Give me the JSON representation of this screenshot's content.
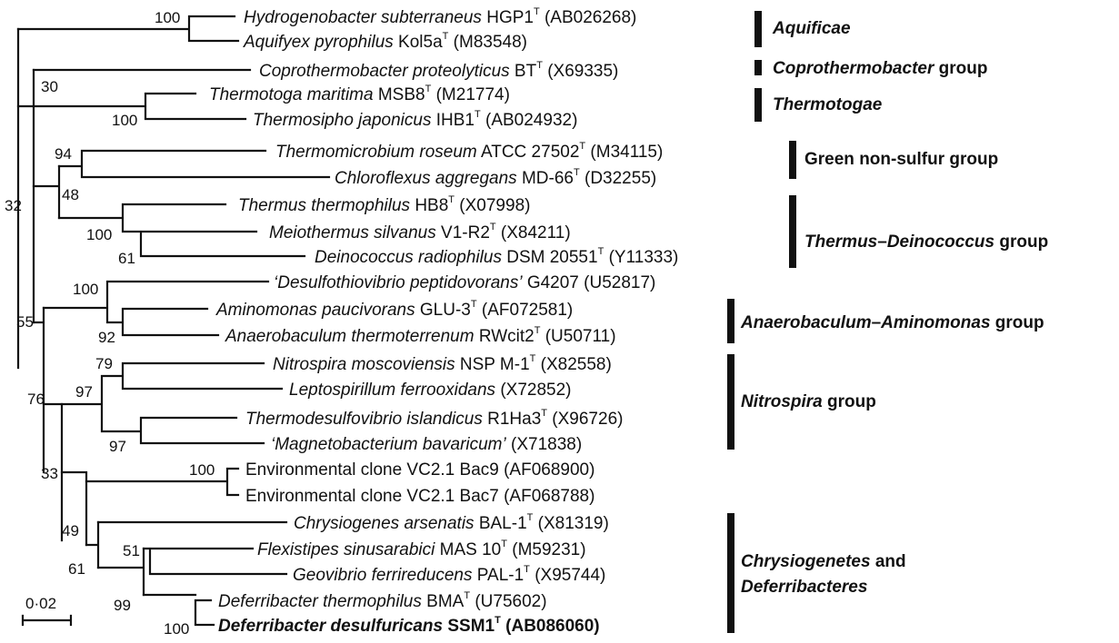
{
  "taxa": [
    {
      "genus": "Hydrogenobacter subterraneus",
      "strain": "HGP1",
      "T": true,
      "acc": "(AB026268)"
    },
    {
      "genus": "Aquifyex pyrophilus",
      "strain": "Kol5a",
      "T": true,
      "acc": "(M83548)"
    },
    {
      "genus": "Coprothermobacter proteolyticus",
      "strain": "BT",
      "T": true,
      "acc": "(X69335)"
    },
    {
      "genus": "Thermotoga maritima",
      "strain": "MSB8",
      "T": true,
      "acc": "(M21774)"
    },
    {
      "genus": "Thermosipho japonicus",
      "strain": "IHB1",
      "T": true,
      "acc": "(AB024932)"
    },
    {
      "genus": "Thermomicrobium roseum",
      "strain": "ATCC 27502",
      "T": true,
      "acc": "(M34115)"
    },
    {
      "genus": "Chloroflexus aggregans",
      "strain": "MD-66",
      "T": true,
      "acc": "(D32255)"
    },
    {
      "genus": "Thermus thermophilus",
      "strain": "HB8",
      "T": true,
      "acc": "(X07998)"
    },
    {
      "genus": "Meiothermus silvanus",
      "strain": "V1-R2",
      "T": true,
      "acc": "(X84211)"
    },
    {
      "genus": "Deinococcus radiophilus",
      "strain": "DSM 20551",
      "T": true,
      "acc": "(Y11333)"
    },
    {
      "genus": "‘Desulfothiovibrio peptidovorans’",
      "strain": "G4207",
      "T": false,
      "acc": "(U52817)"
    },
    {
      "genus": "Aminomonas paucivorans",
      "strain": "GLU-3",
      "T": true,
      "acc": "(AF072581)"
    },
    {
      "genus": "Anaerobaculum thermoterrenum",
      "strain": "RWcit2",
      "T": true,
      "acc": "(U50711)"
    },
    {
      "genus": "Nitrospira moscoviensis",
      "strain": "NSP M-1",
      "T": true,
      "acc": "(X82558)"
    },
    {
      "genus": "Leptospirillum ferrooxidans",
      "strain": "",
      "T": false,
      "acc": "(X72852)"
    },
    {
      "genus": "Thermodesulfovibrio islandicus",
      "strain": "R1Ha3",
      "T": true,
      "acc": "(X96726)"
    },
    {
      "genus": "‘Magnetobacterium bavaricum’",
      "strain": "",
      "T": false,
      "acc": "(X71838)"
    },
    {
      "genus": "",
      "strain": "Environmental clone VC2.1 Bac9",
      "T": false,
      "acc": "(AF068900)"
    },
    {
      "genus": "",
      "strain": "Environmental clone VC2.1 Bac7",
      "T": false,
      "acc": "(AF068788)"
    },
    {
      "genus": "Chrysiogenes arsenatis",
      "strain": "BAL-1",
      "T": true,
      "acc": "(X81319)"
    },
    {
      "genus": "Flexistipes sinusarabici",
      "strain": "MAS 10",
      "T": true,
      "acc": "(M59231)"
    },
    {
      "genus": "Geovibrio ferrireducens",
      "strain": "PAL-1",
      "T": true,
      "acc": "(X95744)"
    },
    {
      "genus": "Deferribacter thermophilus",
      "strain": "BMA",
      "T": true,
      "acc": "(U75602)"
    },
    {
      "genus": "Deferribacter desulfuricans",
      "strain": "SSM1",
      "T": true,
      "acc": "(AB086060)",
      "bold": true
    }
  ],
  "type_marker": "T",
  "bootstraps": {
    "aquificae": "100",
    "thermotogae_root": "30",
    "thermotogae": "100",
    "green_nonsulfur": "94",
    "thermus_green": "48",
    "root": "32",
    "thermus_deino": "100",
    "meio_deino": "61",
    "desulfo_anaero": "100",
    "anaero_amino": "92",
    "clade55": "55",
    "nitrospira": "97",
    "nitro_lepto": "79",
    "thermodesulfo_magneto": "97",
    "clade76": "76",
    "clade33": "33",
    "env_clones": "100",
    "clade49": "49",
    "clade61": "61",
    "flexi_geo": "51",
    "deferribacter": "99",
    "deferribacter_pair": "100"
  },
  "groups": [
    {
      "parts": [
        {
          "t": "Aquificae",
          "i": true
        }
      ]
    },
    {
      "parts": [
        {
          "t": "Coprothermobacter",
          "i": true
        },
        {
          "t": " group",
          "i": false
        }
      ]
    },
    {
      "parts": [
        {
          "t": "Thermotogae",
          "i": true
        }
      ]
    },
    {
      "parts": [
        {
          "t": "Green non-sulfur group",
          "i": false
        }
      ]
    },
    {
      "parts": [
        {
          "t": "Thermus",
          "i": true
        },
        {
          "t": "–",
          "i": false
        },
        {
          "t": "Deinococcus",
          "i": true
        },
        {
          "t": " group",
          "i": false
        }
      ]
    },
    {
      "parts": [
        {
          "t": "Anaerobaculum",
          "i": true
        },
        {
          "t": "–",
          "i": false
        },
        {
          "t": "Aminomonas",
          "i": true
        },
        {
          "t": " group",
          "i": false
        }
      ]
    },
    {
      "parts": [
        {
          "t": "Nitrospira",
          "i": true
        },
        {
          "t": " group",
          "i": false
        }
      ]
    },
    {
      "parts": [
        {
          "t": "Chrysiogenetes",
          "i": true
        },
        {
          "t": " and",
          "i": false
        }
      ]
    },
    {
      "parts": [
        {
          "t": "Deferribacteres",
          "i": true
        }
      ]
    }
  ],
  "scale_label": "0·02"
}
